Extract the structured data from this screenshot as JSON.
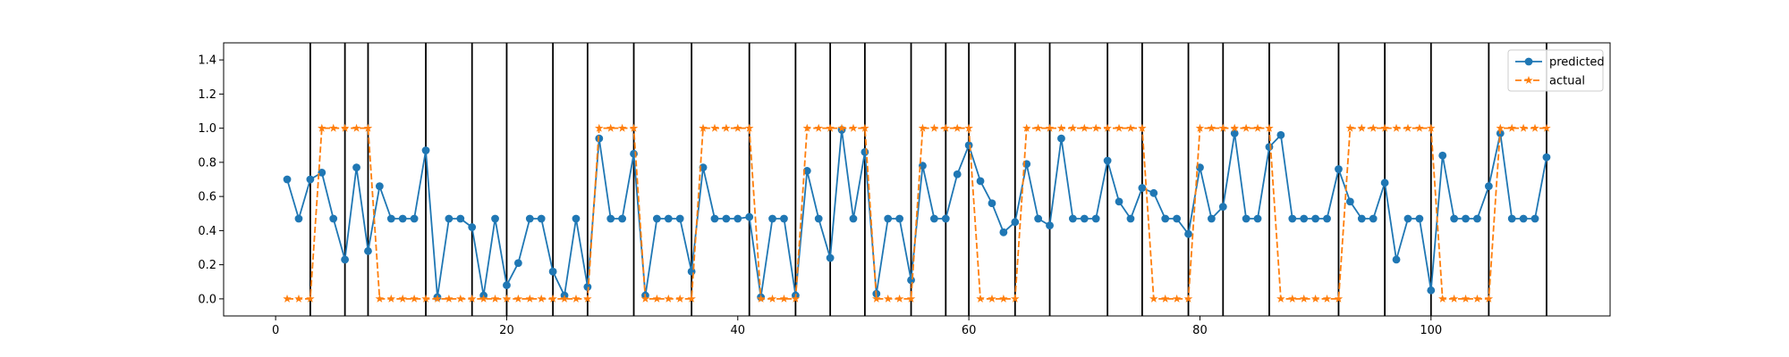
{
  "chart_data": {
    "type": "line",
    "title": "",
    "xlabel": "",
    "ylabel": "",
    "xlim": [
      -4.5,
      115.5
    ],
    "ylim": [
      -0.1,
      1.5
    ],
    "x_ticks": [
      0,
      20,
      40,
      60,
      80,
      100
    ],
    "y_ticks": [
      0.0,
      0.2,
      0.4,
      0.6,
      0.8,
      1.0,
      1.2,
      1.4
    ],
    "x_tick_labels": [
      "0",
      "20",
      "40",
      "60",
      "80",
      "100"
    ],
    "y_tick_labels": [
      "0.0",
      "0.2",
      "0.4",
      "0.6",
      "0.8",
      "1.0",
      "1.2",
      "1.4"
    ],
    "grid": false,
    "legend_position": "top-right",
    "vertical_lines": [
      3,
      6,
      8,
      13,
      17,
      20,
      24,
      27,
      31,
      36,
      41,
      45,
      48,
      51,
      55,
      58,
      60,
      64,
      67,
      72,
      75,
      79,
      82,
      86,
      92,
      96,
      100,
      105,
      110
    ],
    "series": [
      {
        "name": "predicted",
        "color": "#1f77b4",
        "style": "solid",
        "marker": "circle",
        "x": [
          1,
          2,
          3,
          4,
          5,
          6,
          7,
          8,
          9,
          10,
          11,
          12,
          13,
          14,
          15,
          16,
          17,
          18,
          19,
          20,
          21,
          22,
          23,
          24,
          25,
          26,
          27,
          28,
          29,
          30,
          31,
          32,
          33,
          34,
          35,
          36,
          37,
          38,
          39,
          40,
          41,
          42,
          43,
          44,
          45,
          46,
          47,
          48,
          49,
          50,
          51,
          52,
          53,
          54,
          55,
          56,
          57,
          58,
          59,
          60,
          61,
          62,
          63,
          64,
          65,
          66,
          67,
          68,
          69,
          70,
          71,
          72,
          73,
          74,
          75,
          76,
          77,
          78,
          79,
          80,
          81,
          82,
          83,
          84,
          85,
          86,
          87,
          88,
          89,
          90,
          91,
          92,
          93,
          94,
          95,
          96,
          97,
          98,
          99,
          100,
          101,
          102,
          103,
          104,
          105,
          106,
          107,
          108,
          109,
          110
        ],
        "values": [
          0.7,
          0.47,
          0.7,
          0.74,
          0.47,
          0.23,
          0.77,
          0.28,
          0.66,
          0.47,
          0.47,
          0.47,
          0.87,
          0.01,
          0.47,
          0.47,
          0.42,
          0.02,
          0.47,
          0.08,
          0.21,
          0.47,
          0.47,
          0.16,
          0.02,
          0.47,
          0.07,
          0.94,
          0.47,
          0.47,
          0.85,
          0.02,
          0.47,
          0.47,
          0.47,
          0.16,
          0.77,
          0.47,
          0.47,
          0.47,
          0.48,
          0.01,
          0.47,
          0.47,
          0.02,
          0.75,
          0.47,
          0.24,
          0.99,
          0.47,
          0.86,
          0.03,
          0.47,
          0.47,
          0.11,
          0.78,
          0.47,
          0.47,
          0.73,
          0.9,
          0.69,
          0.56,
          0.39,
          0.45,
          0.79,
          0.47,
          0.43,
          0.94,
          0.47,
          0.47,
          0.47,
          0.81,
          0.57,
          0.47,
          0.65,
          0.62,
          0.47,
          0.47,
          0.38,
          0.77,
          0.47,
          0.54,
          0.97,
          0.47,
          0.47,
          0.89,
          0.96,
          0.47,
          0.47,
          0.47,
          0.47,
          0.76,
          0.57,
          0.47,
          0.47,
          0.68,
          0.23,
          0.47,
          0.47,
          0.05,
          0.84,
          0.47,
          0.47,
          0.47,
          0.66,
          0.97,
          0.47,
          0.47,
          0.47,
          0.83
        ]
      },
      {
        "name": "actual",
        "color": "#ff7f0e",
        "style": "dashed",
        "marker": "star",
        "x": [
          1,
          2,
          3,
          4,
          5,
          6,
          7,
          8,
          9,
          10,
          11,
          12,
          13,
          14,
          15,
          16,
          17,
          18,
          19,
          20,
          21,
          22,
          23,
          24,
          25,
          26,
          27,
          28,
          29,
          30,
          31,
          32,
          33,
          34,
          35,
          36,
          37,
          38,
          39,
          40,
          41,
          42,
          43,
          44,
          45,
          46,
          47,
          48,
          49,
          50,
          51,
          52,
          53,
          54,
          55,
          56,
          57,
          58,
          59,
          60,
          61,
          62,
          63,
          64,
          65,
          66,
          67,
          68,
          69,
          70,
          71,
          72,
          73,
          74,
          75,
          76,
          77,
          78,
          79,
          80,
          81,
          82,
          83,
          84,
          85,
          86,
          87,
          88,
          89,
          90,
          91,
          92,
          93,
          94,
          95,
          96,
          97,
          98,
          99,
          100,
          101,
          102,
          103,
          104,
          105,
          106,
          107,
          108,
          109,
          110
        ],
        "values": [
          0,
          0,
          0,
          1,
          1,
          1,
          1,
          1,
          0,
          0,
          0,
          0,
          0,
          0,
          0,
          0,
          0,
          0,
          0,
          0,
          0,
          0,
          0,
          0,
          0,
          0,
          0,
          1,
          1,
          1,
          1,
          0,
          0,
          0,
          0,
          0,
          1,
          1,
          1,
          1,
          1,
          0,
          0,
          0,
          0,
          1,
          1,
          1,
          1,
          1,
          1,
          0,
          0,
          0,
          0,
          1,
          1,
          1,
          1,
          1,
          0,
          0,
          0,
          0,
          1,
          1,
          1,
          1,
          1,
          1,
          1,
          1,
          1,
          1,
          1,
          0,
          0,
          0,
          0,
          1,
          1,
          1,
          1,
          1,
          1,
          1,
          0,
          0,
          0,
          0,
          0,
          0,
          1,
          1,
          1,
          1,
          1,
          1,
          1,
          1,
          0,
          0,
          0,
          0,
          0,
          1,
          1,
          1,
          1,
          1
        ]
      }
    ]
  }
}
